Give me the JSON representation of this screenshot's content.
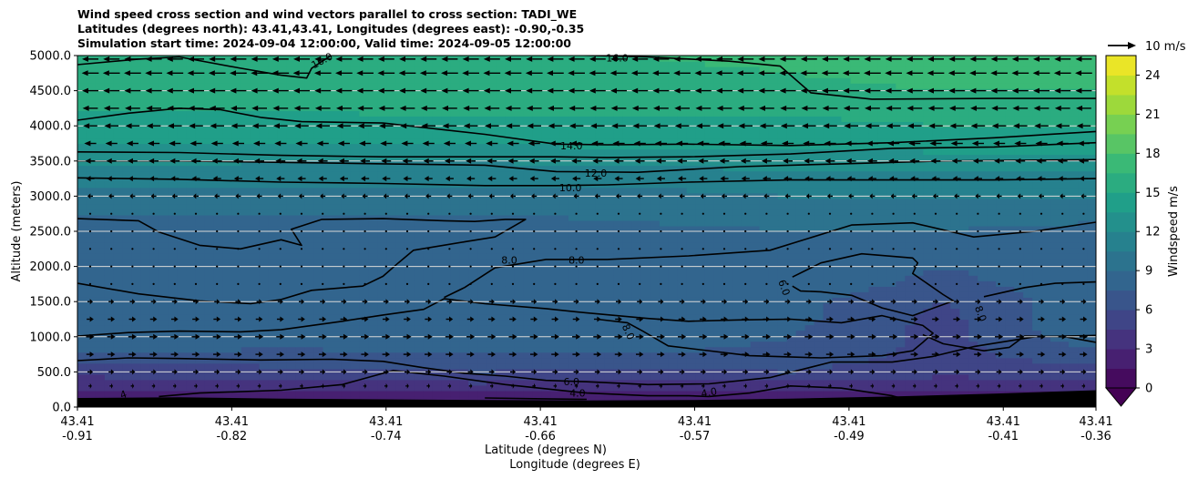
{
  "chart_data": {
    "type": "heatmap",
    "title_lines": [
      "Wind speed cross section and wind vectors parallel to cross section: TADI_WE",
      "Latitudes (degrees north): 43.41,43.41, Longitudes (degrees east): -0.90,-0.35",
      "Simulation start time: 2024-09-04 12:00:00, Valid time: 2024-09-05 12:00:00"
    ],
    "ylabel": "Altitude (meters)",
    "xlabel_lat": "Latitude (degrees N)",
    "xlabel_lon": "Longitude (degrees E)",
    "ylim": [
      0,
      5000
    ],
    "y_ticks": [
      {
        "value": 0,
        "label": "0.0"
      },
      {
        "value": 500,
        "label": "500.0"
      },
      {
        "value": 1000,
        "label": "1000.0"
      },
      {
        "value": 1500,
        "label": "1500.0"
      },
      {
        "value": 2000,
        "label": "2000.0"
      },
      {
        "value": 2500,
        "label": "2500.0"
      },
      {
        "value": 3000,
        "label": "3000.0"
      },
      {
        "value": 3500,
        "label": "3500.0"
      },
      {
        "value": 4000,
        "label": "4000.0"
      },
      {
        "value": 4500,
        "label": "4500.0"
      },
      {
        "value": 5000,
        "label": "5000.0"
      }
    ],
    "x_ticks": [
      {
        "pos": 0.0,
        "lat": "43.41",
        "lon": "-0.91"
      },
      {
        "pos": 0.1515,
        "lat": "43.41",
        "lon": "-0.82"
      },
      {
        "pos": 0.303,
        "lat": "43.41",
        "lon": "-0.74"
      },
      {
        "pos": 0.4545,
        "lat": "43.41",
        "lon": "-0.66"
      },
      {
        "pos": 0.606,
        "lat": "43.41",
        "lon": "-0.57"
      },
      {
        "pos": 0.7575,
        "lat": "43.41",
        "lon": "-0.49"
      },
      {
        "pos": 0.909,
        "lat": "43.41",
        "lon": "-0.41"
      },
      {
        "pos": 1.0,
        "lat": "43.41",
        "lon": "-0.36"
      }
    ],
    "colorbar": {
      "label": "Windspeed m/s",
      "min": 0,
      "max": 25.5,
      "ticks": [
        "0",
        "3",
        "6",
        "9",
        "12",
        "15",
        "18",
        "21",
        "24"
      ],
      "extend": "min"
    },
    "quiver_key": {
      "label": "10 m/s",
      "value": 10
    },
    "wind_rows": [
      {
        "alt": 4950,
        "u": -7.5
      },
      {
        "alt": 4750,
        "u": -7.8
      },
      {
        "alt": 4500,
        "u": -7.5
      },
      {
        "alt": 4250,
        "u": -7.0
      },
      {
        "alt": 4000,
        "u": -6.5
      },
      {
        "alt": 3750,
        "u": -5.5
      },
      {
        "alt": 3500,
        "u": -4.5
      },
      {
        "alt": 3250,
        "u": -3.8
      },
      {
        "alt": 3000,
        "u": -2.5
      },
      {
        "alt": 2750,
        "u": -0.8
      },
      {
        "alt": 2500,
        "u": 0.4
      },
      {
        "alt": 2250,
        "u": 0.3
      },
      {
        "alt": 2000,
        "u": 0.2
      },
      {
        "alt": 1750,
        "u": 0.5
      },
      {
        "alt": 1500,
        "u": 2.5
      },
      {
        "alt": 1250,
        "u": 3.2
      },
      {
        "alt": 1000,
        "u": 3.8
      },
      {
        "alt": 750,
        "u": 3.5
      },
      {
        "alt": 500,
        "u": 2.5
      },
      {
        "alt": 300,
        "u": 1.5
      }
    ],
    "speed_field": {
      "alt_levels": [
        0,
        250,
        500,
        750,
        1000,
        1250,
        1500,
        1750,
        2000,
        2250,
        2500,
        2750,
        3000,
        3250,
        3500,
        3750,
        4000,
        4250,
        4500,
        4750,
        5000
      ],
      "x_fracs": [
        0,
        0.2,
        0.4,
        0.55,
        0.7,
        0.85,
        1.0
      ],
      "speed": [
        [
          1,
          1,
          1,
          1,
          1,
          1,
          1
        ],
        [
          3,
          3.5,
          3.5,
          3,
          3,
          3,
          3
        ],
        [
          5,
          5.5,
          6,
          5.5,
          6,
          5,
          5.5
        ],
        [
          7.5,
          7,
          7.5,
          7.5,
          7,
          5.5,
          7
        ],
        [
          8.5,
          8.5,
          8.5,
          8.5,
          7.5,
          5.5,
          8.5
        ],
        [
          9,
          9,
          9,
          9,
          8,
          5.5,
          9
        ],
        [
          9,
          8.5,
          8.5,
          8.5,
          8,
          6,
          8.5
        ],
        [
          8.5,
          8.5,
          8.5,
          8.5,
          8.5,
          7,
          8.5
        ],
        [
          8.5,
          8.5,
          8,
          8.5,
          8.5,
          7.5,
          8.5
        ],
        [
          8.5,
          8,
          8,
          8.5,
          8.5,
          8.5,
          8.5
        ],
        [
          8,
          8,
          7.5,
          8.5,
          9,
          9,
          8.5
        ],
        [
          9,
          9,
          9,
          9.5,
          9.5,
          9.5,
          9.5
        ],
        [
          10,
          10,
          10,
          10,
          10.5,
          10.5,
          10.5
        ],
        [
          11,
          11,
          11,
          11,
          11.5,
          11.5,
          11.5
        ],
        [
          12.5,
          12,
          12,
          12.5,
          12.5,
          13,
          13
        ],
        [
          13.5,
          13.5,
          13.5,
          14,
          14,
          14,
          14
        ],
        [
          14.5,
          14.5,
          14.5,
          14.5,
          14.5,
          15,
          15
        ],
        [
          15,
          15,
          15.5,
          15.5,
          15.5,
          15.5,
          16
        ],
        [
          15.5,
          15.5,
          15.5,
          15.5,
          16,
          16.5,
          16.5
        ],
        [
          16,
          16,
          16,
          16,
          16.5,
          17,
          17
        ],
        [
          16,
          16,
          16.5,
          16.5,
          17,
          17.5,
          17.5
        ]
      ]
    },
    "contour_labels": [
      {
        "text": "16.0",
        "x": 0.24,
        "alt": 4930,
        "rot": -28
      },
      {
        "text": "16.0",
        "x": 0.53,
        "alt": 4970,
        "rot": 0
      },
      {
        "text": "14.0",
        "x": 0.485,
        "alt": 3720,
        "rot": 0
      },
      {
        "text": "12.0",
        "x": 0.509,
        "alt": 3330,
        "rot": 0
      },
      {
        "text": "10.0",
        "x": 0.484,
        "alt": 3120,
        "rot": 0
      },
      {
        "text": "8.0",
        "x": 0.424,
        "alt": 2090,
        "rot": 0
      },
      {
        "text": "8.0",
        "x": 0.49,
        "alt": 2090,
        "rot": 0
      },
      {
        "text": "6.0",
        "x": 0.694,
        "alt": 1700,
        "rot": 70
      },
      {
        "text": "8.0",
        "x": 0.541,
        "alt": 1070,
        "rot": 65
      },
      {
        "text": "8.0",
        "x": 0.887,
        "alt": 1330,
        "rot": 70
      },
      {
        "text": "6.0",
        "x": 0.485,
        "alt": 360,
        "rot": 0
      },
      {
        "text": "4.0",
        "x": 0.491,
        "alt": 200,
        "rot": 0
      },
      {
        "text": "4.0",
        "x": 0.62,
        "alt": 210,
        "rot": -10
      },
      {
        "text": "4",
        "x": 0.045,
        "alt": 180,
        "rot": -20
      }
    ]
  }
}
